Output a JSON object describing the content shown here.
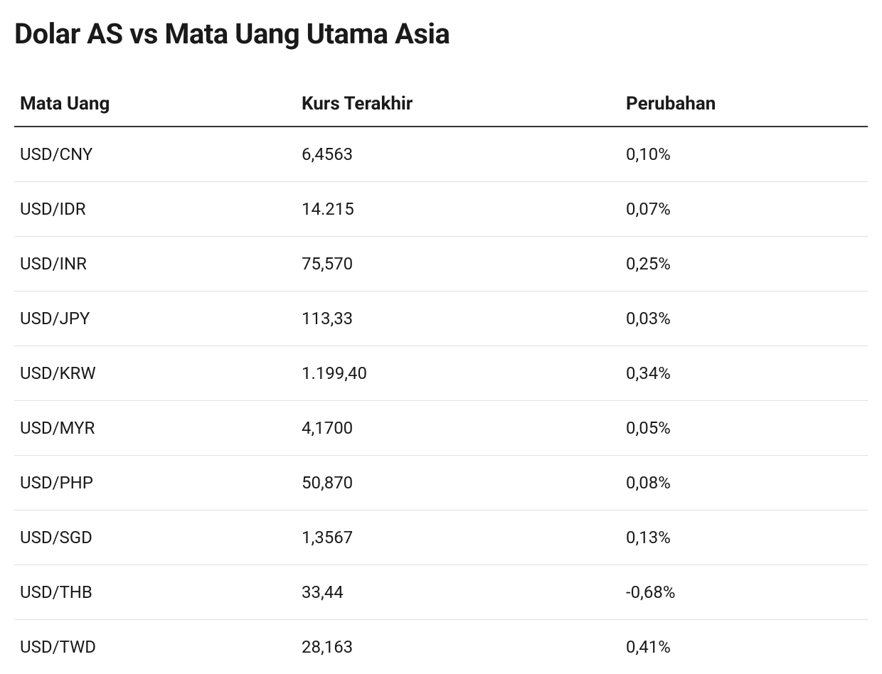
{
  "title": "Dolar AS vs Mata Uang Utama Asia",
  "table": {
    "type": "table",
    "columns": [
      {
        "key": "currency",
        "label": "Mata Uang",
        "align": "left"
      },
      {
        "key": "rate",
        "label": "Kurs Terakhir",
        "align": "left"
      },
      {
        "key": "change",
        "label": "Perubahan",
        "align": "left"
      }
    ],
    "rows": [
      {
        "currency": "USD/CNY",
        "rate": "6,4563",
        "change": "0,10%"
      },
      {
        "currency": "USD/IDR",
        "rate": "14.215",
        "change": "0,07%"
      },
      {
        "currency": "USD/INR",
        "rate": "75,570",
        "change": "0,25%"
      },
      {
        "currency": "USD/JPY",
        "rate": "113,33",
        "change": "0,03%"
      },
      {
        "currency": "USD/KRW",
        "rate": "1.199,40",
        "change": "0,34%"
      },
      {
        "currency": "USD/MYR",
        "rate": "4,1700",
        "change": "0,05%"
      },
      {
        "currency": "USD/PHP",
        "rate": "50,870",
        "change": "0,08%"
      },
      {
        "currency": "USD/SGD",
        "rate": "1,3567",
        "change": "0,13%"
      },
      {
        "currency": "USD/THB",
        "rate": "33,44",
        "change": "-0,68%"
      },
      {
        "currency": "USD/TWD",
        "rate": "28,163",
        "change": "0,41%"
      }
    ],
    "styling": {
      "title_fontsize": 40,
      "title_fontweight": 700,
      "header_fontsize": 26,
      "header_fontweight": 700,
      "cell_fontsize": 24,
      "cell_fontweight": 400,
      "text_color": "#1a1a1a",
      "background_color": "#ffffff",
      "header_border_color": "#333333",
      "header_border_width": 2,
      "row_border_color": "#e0e0e0",
      "row_border_width": 1,
      "row_padding_v": 24,
      "col_widths_pct": [
        33,
        38,
        29
      ]
    }
  }
}
